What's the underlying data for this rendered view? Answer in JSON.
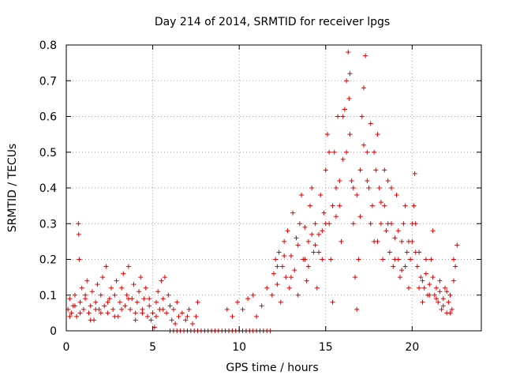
{
  "chart_data": {
    "type": "scatter",
    "title": "Day 214 of 2014, SRMTID for receiver lpgs",
    "xlabel": "GPS time / hours",
    "ylabel": "SRMTID / TECUs",
    "xlim": [
      0,
      24
    ],
    "ylim": [
      0,
      0.8
    ],
    "xticks": [
      0,
      5,
      10,
      15,
      20
    ],
    "xtick_labels": [
      "0",
      "5",
      "10",
      "15",
      "20"
    ],
    "yticks": [
      0,
      0.1,
      0.2,
      0.3,
      0.4,
      0.5,
      0.6,
      0.7,
      0.8
    ],
    "ytick_labels": [
      "0",
      "0.1",
      "0.2",
      "0.3",
      "0.4",
      "0.5",
      "0.6",
      "0.7",
      "0.8"
    ],
    "grid": true,
    "marker": "plus",
    "color": "#e00000",
    "series": [
      {
        "name": "SRMTID",
        "points": [
          [
            0.1,
            0.06
          ],
          [
            0.2,
            0.09
          ],
          [
            0.3,
            0.05
          ],
          [
            0.4,
            0.07
          ],
          [
            0.5,
            0.1
          ],
          [
            0.6,
            0.04
          ],
          [
            0.7,
            0.3
          ],
          [
            0.72,
            0.27
          ],
          [
            0.75,
            0.2
          ],
          [
            0.8,
            0.08
          ],
          [
            0.9,
            0.12
          ],
          [
            1.0,
            0.06
          ],
          [
            1.1,
            0.09
          ],
          [
            1.2,
            0.14
          ],
          [
            1.3,
            0.05
          ],
          [
            1.4,
            0.07
          ],
          [
            1.5,
            0.11
          ],
          [
            1.6,
            0.03
          ],
          [
            1.7,
            0.08
          ],
          [
            1.8,
            0.13
          ],
          [
            1.9,
            0.06
          ],
          [
            2.0,
            0.1
          ],
          [
            2.1,
            0.15
          ],
          [
            2.2,
            0.07
          ],
          [
            2.3,
            0.18
          ],
          [
            2.4,
            0.05
          ],
          [
            2.5,
            0.09
          ],
          [
            2.6,
            0.12
          ],
          [
            2.7,
            0.06
          ],
          [
            2.8,
            0.1
          ],
          [
            2.9,
            0.14
          ],
          [
            3.0,
            0.04
          ],
          [
            3.1,
            0.08
          ],
          [
            3.2,
            0.12
          ],
          [
            3.3,
            0.16
          ],
          [
            3.4,
            0.07
          ],
          [
            3.5,
            0.1
          ],
          [
            3.6,
            0.18
          ],
          [
            3.7,
            0.06
          ],
          [
            3.8,
            0.09
          ],
          [
            3.9,
            0.13
          ],
          [
            4.0,
            0.05
          ],
          [
            4.1,
            0.08
          ],
          [
            4.2,
            0.11
          ],
          [
            4.3,
            0.15
          ],
          [
            4.4,
            0.06
          ],
          [
            4.5,
            0.09
          ],
          [
            4.6,
            0.12
          ],
          [
            4.7,
            0.04
          ],
          [
            4.8,
            0.07
          ],
          [
            4.9,
            0.03
          ],
          [
            5.0,
            0.05
          ],
          [
            5.1,
            0.01
          ],
          [
            5.2,
            0.08
          ],
          [
            5.3,
            0.11
          ],
          [
            5.4,
            0.06
          ],
          [
            5.5,
            0.14
          ],
          [
            5.6,
            0.09
          ],
          [
            5.7,
            0.15
          ],
          [
            5.8,
            0.05
          ],
          [
            5.9,
            0.1
          ],
          [
            6.0,
            0.07
          ],
          [
            6.1,
            0.03
          ],
          [
            6.2,
            0.06
          ],
          [
            6.3,
            0.02
          ],
          [
            6.5,
            0.04
          ],
          [
            6.7,
            0.05
          ],
          [
            6.9,
            0.03
          ],
          [
            7.1,
            0.06
          ],
          [
            7.3,
            0.02
          ],
          [
            7.5,
            0.04
          ],
          [
            7.6,
            0.08
          ],
          [
            6.0,
            0.0
          ],
          [
            6.2,
            0.0
          ],
          [
            6.4,
            0.0
          ],
          [
            6.6,
            0.0
          ],
          [
            6.8,
            0.0
          ],
          [
            7.0,
            0.0
          ],
          [
            7.2,
            0.0
          ],
          [
            7.4,
            0.0
          ],
          [
            7.6,
            0.0
          ],
          [
            7.8,
            0.0
          ],
          [
            8.0,
            0.0
          ],
          [
            8.2,
            0.0
          ],
          [
            8.4,
            0.0
          ],
          [
            8.6,
            0.0
          ],
          [
            8.8,
            0.0
          ],
          [
            9.0,
            0.0
          ],
          [
            9.2,
            0.0
          ],
          [
            9.4,
            0.0
          ],
          [
            9.6,
            0.0
          ],
          [
            9.8,
            0.0
          ],
          [
            10.0,
            0.0
          ],
          [
            10.2,
            0.0
          ],
          [
            10.4,
            0.0
          ],
          [
            10.6,
            0.0
          ],
          [
            10.8,
            0.0
          ],
          [
            11.0,
            0.0
          ],
          [
            11.2,
            0.0
          ],
          [
            11.4,
            0.0
          ],
          [
            11.6,
            0.0
          ],
          [
            11.8,
            0.0
          ],
          [
            9.3,
            0.06
          ],
          [
            9.6,
            0.04
          ],
          [
            9.9,
            0.08
          ],
          [
            10.2,
            0.06
          ],
          [
            10.5,
            0.09
          ],
          [
            10.8,
            0.1
          ],
          [
            11.0,
            0.04
          ],
          [
            11.3,
            0.07
          ],
          [
            11.6,
            0.12
          ],
          [
            11.9,
            0.1
          ],
          [
            12.0,
            0.16
          ],
          [
            12.1,
            0.2
          ],
          [
            12.2,
            0.13
          ],
          [
            12.3,
            0.22
          ],
          [
            12.4,
            0.08
          ],
          [
            12.5,
            0.18
          ],
          [
            12.6,
            0.25
          ],
          [
            12.7,
            0.15
          ],
          [
            12.8,
            0.28
          ],
          [
            12.9,
            0.12
          ],
          [
            13.0,
            0.21
          ],
          [
            13.1,
            0.33
          ],
          [
            13.2,
            0.17
          ],
          [
            13.3,
            0.26
          ],
          [
            13.4,
            0.1
          ],
          [
            13.5,
            0.3
          ],
          [
            13.6,
            0.38
          ],
          [
            13.7,
            0.2
          ],
          [
            13.8,
            0.29
          ],
          [
            13.9,
            0.14
          ],
          [
            14.0,
            0.25
          ],
          [
            14.1,
            0.35
          ],
          [
            14.2,
            0.4
          ],
          [
            14.3,
            0.22
          ],
          [
            14.4,
            0.3
          ],
          [
            14.5,
            0.12
          ],
          [
            14.6,
            0.27
          ],
          [
            14.7,
            0.38
          ],
          [
            14.8,
            0.2
          ],
          [
            14.9,
            0.33
          ],
          [
            15.0,
            0.45
          ],
          [
            15.1,
            0.55
          ],
          [
            15.2,
            0.3
          ],
          [
            15.3,
            0.2
          ],
          [
            15.4,
            0.08
          ],
          [
            15.5,
            0.5
          ],
          [
            15.6,
            0.4
          ],
          [
            15.7,
            0.6
          ],
          [
            15.8,
            0.35
          ],
          [
            15.9,
            0.25
          ],
          [
            16.0,
            0.48
          ],
          [
            16.1,
            0.62
          ],
          [
            16.2,
            0.7
          ],
          [
            16.3,
            0.78
          ],
          [
            16.35,
            0.65
          ],
          [
            16.4,
            0.55
          ],
          [
            16.5,
            0.42
          ],
          [
            16.6,
            0.3
          ],
          [
            16.7,
            0.15
          ],
          [
            16.8,
            0.06
          ],
          [
            16.9,
            0.2
          ],
          [
            17.0,
            0.45
          ],
          [
            17.1,
            0.6
          ],
          [
            17.2,
            0.68
          ],
          [
            17.3,
            0.77
          ],
          [
            17.4,
            0.5
          ],
          [
            17.5,
            0.4
          ],
          [
            17.6,
            0.3
          ],
          [
            17.7,
            0.35
          ],
          [
            17.8,
            0.25
          ],
          [
            17.9,
            0.45
          ],
          [
            18.0,
            0.55
          ],
          [
            18.1,
            0.4
          ],
          [
            18.2,
            0.3
          ],
          [
            18.3,
            0.2
          ],
          [
            18.4,
            0.35
          ],
          [
            18.5,
            0.28
          ],
          [
            18.6,
            0.42
          ],
          [
            18.7,
            0.22
          ],
          [
            18.8,
            0.3
          ],
          [
            18.9,
            0.18
          ],
          [
            19.0,
            0.26
          ],
          [
            19.1,
            0.38
          ],
          [
            19.2,
            0.2
          ],
          [
            19.3,
            0.15
          ],
          [
            19.4,
            0.25
          ],
          [
            19.5,
            0.3
          ],
          [
            19.6,
            0.18
          ],
          [
            19.7,
            0.22
          ],
          [
            19.8,
            0.12
          ],
          [
            19.9,
            0.2
          ],
          [
            20.0,
            0.25
          ],
          [
            20.1,
            0.35
          ],
          [
            20.15,
            0.44
          ],
          [
            20.2,
            0.3
          ],
          [
            20.3,
            0.18
          ],
          [
            20.4,
            0.12
          ],
          [
            20.5,
            0.15
          ],
          [
            20.6,
            0.08
          ],
          [
            20.7,
            0.12
          ],
          [
            20.8,
            0.16
          ],
          [
            20.9,
            0.1
          ],
          [
            21.0,
            0.13
          ],
          [
            21.1,
            0.2
          ],
          [
            21.2,
            0.15
          ],
          [
            21.3,
            0.1
          ],
          [
            21.4,
            0.12
          ],
          [
            21.5,
            0.08
          ],
          [
            21.6,
            0.11
          ],
          [
            21.7,
            0.06
          ],
          [
            21.8,
            0.09
          ],
          [
            21.9,
            0.12
          ],
          [
            22.0,
            0.05
          ],
          [
            22.1,
            0.08
          ],
          [
            22.2,
            0.1
          ],
          [
            22.3,
            0.06
          ],
          [
            22.4,
            0.2
          ],
          [
            22.5,
            0.18
          ],
          [
            22.6,
            0.24
          ],
          [
            0.2,
            0.04
          ],
          [
            0.5,
            0.07
          ],
          [
            0.8,
            0.05
          ],
          [
            1.1,
            0.1
          ],
          [
            1.4,
            0.03
          ],
          [
            1.7,
            0.06
          ],
          [
            2.0,
            0.05
          ],
          [
            2.4,
            0.08
          ],
          [
            2.8,
            0.04
          ],
          [
            3.2,
            0.06
          ],
          [
            3.6,
            0.09
          ],
          [
            4.0,
            0.03
          ],
          [
            4.4,
            0.05
          ],
          [
            4.8,
            0.09
          ],
          [
            5.2,
            0.04
          ],
          [
            5.6,
            0.06
          ],
          [
            6.4,
            0.08
          ],
          [
            7.0,
            0.04
          ],
          [
            12.2,
            0.18
          ],
          [
            12.6,
            0.21
          ],
          [
            13.0,
            0.15
          ],
          [
            13.4,
            0.24
          ],
          [
            13.8,
            0.2
          ],
          [
            14.2,
            0.27
          ],
          [
            14.6,
            0.22
          ],
          [
            15.0,
            0.3
          ],
          [
            15.4,
            0.35
          ],
          [
            15.8,
            0.42
          ],
          [
            16.2,
            0.5
          ],
          [
            16.6,
            0.4
          ],
          [
            17.0,
            0.32
          ],
          [
            17.4,
            0.42
          ],
          [
            17.8,
            0.5
          ],
          [
            18.2,
            0.36
          ],
          [
            18.6,
            0.3
          ],
          [
            19.0,
            0.2
          ],
          [
            19.4,
            0.17
          ],
          [
            19.8,
            0.25
          ],
          [
            20.2,
            0.22
          ],
          [
            20.6,
            0.14
          ],
          [
            21.0,
            0.1
          ],
          [
            21.4,
            0.09
          ],
          [
            21.8,
            0.07
          ],
          [
            22.2,
            0.05
          ],
          [
            14.0,
            0.18
          ],
          [
            14.4,
            0.24
          ],
          [
            14.8,
            0.28
          ],
          [
            15.2,
            0.5
          ],
          [
            15.6,
            0.32
          ],
          [
            16.0,
            0.6
          ],
          [
            16.4,
            0.72
          ],
          [
            16.8,
            0.38
          ],
          [
            17.2,
            0.52
          ],
          [
            17.6,
            0.58
          ],
          [
            18.0,
            0.25
          ],
          [
            18.4,
            0.45
          ],
          [
            18.8,
            0.4
          ],
          [
            19.2,
            0.28
          ],
          [
            19.6,
            0.35
          ],
          [
            20.0,
            0.3
          ],
          [
            20.4,
            0.22
          ],
          [
            20.8,
            0.2
          ],
          [
            21.2,
            0.28
          ],
          [
            21.6,
            0.14
          ],
          [
            22.0,
            0.11
          ],
          [
            22.4,
            0.14
          ]
        ]
      }
    ]
  }
}
